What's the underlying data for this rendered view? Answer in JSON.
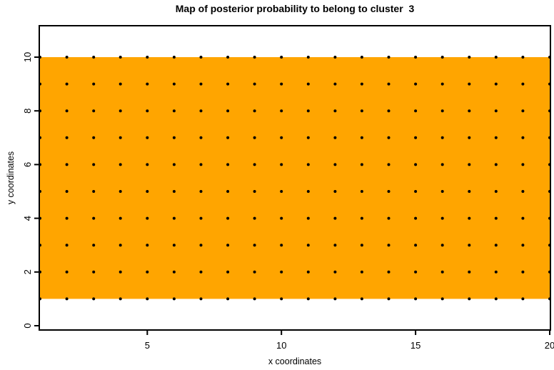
{
  "chart": {
    "title": "Map of posterior probability to belong to cluster  3",
    "xlabel": "x coordinates",
    "ylabel": "y coordinates"
  },
  "chart_data": {
    "type": "heatmap",
    "title": "Map of posterior probability to belong to cluster  3",
    "xlabel": "x coordinates",
    "ylabel": "y coordinates",
    "cluster_shown": 3,
    "x_ticks": [
      5,
      10,
      15,
      20
    ],
    "y_ticks": [
      0,
      2,
      4,
      6,
      8,
      10
    ],
    "xlim": [
      1,
      20
    ],
    "ylim": [
      -0.17,
      11.17
    ],
    "x_grid": [
      1,
      2,
      3,
      4,
      5,
      6,
      7,
      8,
      9,
      10,
      11,
      12,
      13,
      14,
      15,
      16,
      17,
      18,
      19,
      20
    ],
    "y_grid": [
      1,
      2,
      3,
      4,
      5,
      6,
      7,
      8,
      9,
      10
    ],
    "n_points": 200,
    "region": {
      "x_from": 1,
      "x_to": 20,
      "y_from": 1,
      "y_to": 10
    },
    "uniform_probability_region": true,
    "legend": "none",
    "grid_lines": false,
    "colors": {
      "region_fill": "#FFA500",
      "points": "#000000",
      "axis": "#000000",
      "background": "#FFFFFF"
    }
  }
}
